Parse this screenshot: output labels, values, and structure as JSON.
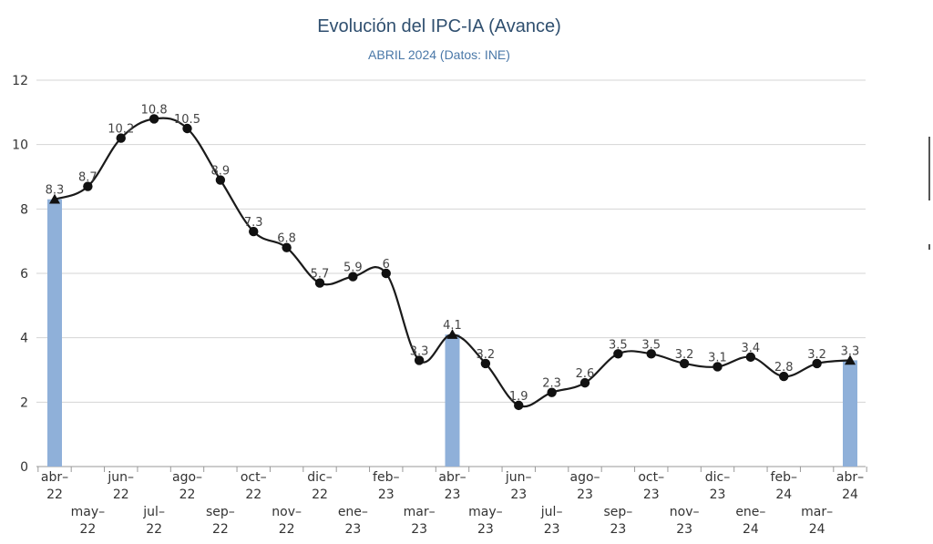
{
  "chart_data": {
    "type": "line",
    "title": "Evolución del IPC-IA (Avance)",
    "subtitle": "ABRIL 2024 (Datos: INE)",
    "xlabel": "",
    "ylabel": "",
    "ylim": [
      0,
      12
    ],
    "yticks": [
      0,
      2,
      4,
      6,
      8,
      10,
      12
    ],
    "grid": true,
    "categories": [
      "abr-22",
      "may-22",
      "jun-22",
      "jul-22",
      "ago-22",
      "sep-22",
      "oct-22",
      "nov-22",
      "dic-22",
      "ene-23",
      "feb-23",
      "mar-23",
      "abr-23",
      "may-23",
      "jun-23",
      "jul-23",
      "ago-23",
      "sep-23",
      "oct-23",
      "nov-23",
      "dic-23",
      "ene-24",
      "feb-24",
      "mar-24",
      "abr-24"
    ],
    "category_labels": [
      {
        "top": "abr–",
        "bottom": "22"
      },
      {
        "top": "may–",
        "bottom": "22"
      },
      {
        "top": "jun–",
        "bottom": "22"
      },
      {
        "top": "jul–",
        "bottom": "22"
      },
      {
        "top": "ago–",
        "bottom": "22"
      },
      {
        "top": "sep–",
        "bottom": "22"
      },
      {
        "top": "oct–",
        "bottom": "22"
      },
      {
        "top": "nov–",
        "bottom": "22"
      },
      {
        "top": "dic–",
        "bottom": "22"
      },
      {
        "top": "ene–",
        "bottom": "23"
      },
      {
        "top": "feb–",
        "bottom": "23"
      },
      {
        "top": "mar–",
        "bottom": "23"
      },
      {
        "top": "abr–",
        "bottom": "23"
      },
      {
        "top": "may–",
        "bottom": "23"
      },
      {
        "top": "jun–",
        "bottom": "23"
      },
      {
        "top": "jul–",
        "bottom": "23"
      },
      {
        "top": "ago–",
        "bottom": "23"
      },
      {
        "top": "sep–",
        "bottom": "23"
      },
      {
        "top": "oct–",
        "bottom": "23"
      },
      {
        "top": "nov–",
        "bottom": "23"
      },
      {
        "top": "dic–",
        "bottom": "23"
      },
      {
        "top": "ene–",
        "bottom": "24"
      },
      {
        "top": "feb–",
        "bottom": "24"
      },
      {
        "top": "mar–",
        "bottom": "24"
      },
      {
        "top": "abr–",
        "bottom": "24"
      }
    ],
    "values": [
      8.3,
      8.7,
      10.2,
      10.8,
      10.5,
      8.9,
      7.3,
      6.8,
      5.7,
      5.9,
      6,
      3.3,
      4.1,
      3.2,
      1.9,
      2.3,
      2.6,
      3.5,
      3.5,
      3.2,
      3.1,
      3.4,
      2.8,
      3.2,
      3.3
    ],
    "value_labels": [
      "8.3",
      "8.7",
      "10.2",
      "10.8",
      "10.5",
      "8.9",
      "7.3",
      "6.8",
      "5.7",
      "5.9",
      "6",
      "3.3",
      "4.1",
      "3.2",
      "1.9",
      "2.3",
      "2.6",
      "3.5",
      "3.5",
      "3.2",
      "3.1",
      "3.4",
      "2.8",
      "3.2",
      "3.3"
    ],
    "highlight_bars": [
      "abr-22",
      "abr-23",
      "abr-24"
    ],
    "colors": {
      "line": "#1a1a1a",
      "marker": "#111111",
      "bar": "#8fb0d9",
      "grid": "#d4d4d4",
      "title": "#2f4f6f",
      "subtitle": "#4a78a8",
      "axis_text": "#333333"
    }
  }
}
